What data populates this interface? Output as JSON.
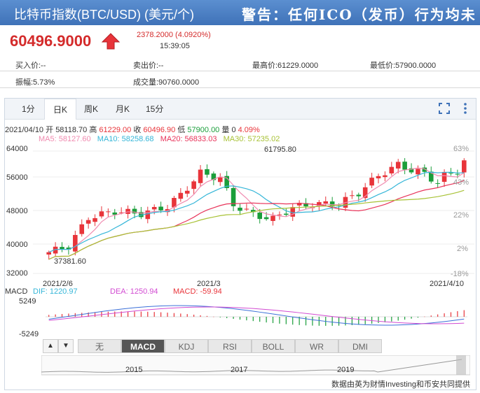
{
  "header": {
    "title": "比特币指数(BTC/USD) (美元/个)",
    "warning": "警告：任何ICO（发币）行为均未"
  },
  "quote": {
    "price": "60496.9000",
    "change": "2378.2000 (4.0920%)",
    "time": "15:39:05"
  },
  "info": {
    "buy": "买入价:--",
    "sell": "卖出价:--",
    "high": "最高价:61229.0000",
    "low": "最低价:57900.0000",
    "amplitude": "振幅:5.73%",
    "volume": "成交量:90760.0000"
  },
  "tabs": [
    "1分",
    "日K",
    "周K",
    "月K",
    "15分"
  ],
  "active_tab": "日K",
  "legend": {
    "date": "2021/04/10",
    "open_label": "开",
    "open": "58118.70",
    "high_label": "高",
    "high": "61229.00",
    "close_label": "收",
    "close": "60496.90",
    "low_label": "低",
    "low": "57900.00",
    "vol_label": "量",
    "vol": "0",
    "pct": "4.09%",
    "ma5": "MA5: 58127.60",
    "ma10": "MA10: 58258.68",
    "ma20": "MA20: 56833.03",
    "ma30": "MA30: 57235.02"
  },
  "macd_legend": {
    "label": "MACD",
    "dif": "DIF: 1220.97",
    "dea": "DEA: 1250.94",
    "macd": "MACD: -59.94"
  },
  "indicator_tabs": [
    "无",
    "MACD",
    "KDJ",
    "RSI",
    "BOLL",
    "WR",
    "DMI"
  ],
  "active_indicator": "MACD",
  "footer": "数据由英为财情Investing和币安共同提供",
  "colors": {
    "up": "#e8343a",
    "down": "#1a9e3a",
    "ma5": "#f08bb0",
    "ma10": "#35b6d8",
    "ma20": "#e8345a",
    "ma30": "#a8c236"
  },
  "chart_data": {
    "type": "candlestick",
    "y_ticks": [
      "64000",
      "56000",
      "48000",
      "40000",
      "32000"
    ],
    "pct_ticks": [
      "63%",
      "43%",
      "22%",
      "2%",
      "-18%"
    ],
    "x_ticks": [
      "2021/2/6",
      "2021/3",
      "2021/4/10"
    ],
    "annotations": {
      "max": "61795.80",
      "min": "37381.60"
    },
    "macd_ticks": [
      "5249",
      "-5249"
    ],
    "navigator_years": [
      "2015",
      "2017",
      "2019"
    ],
    "ylim": [
      32000,
      64000
    ]
  }
}
